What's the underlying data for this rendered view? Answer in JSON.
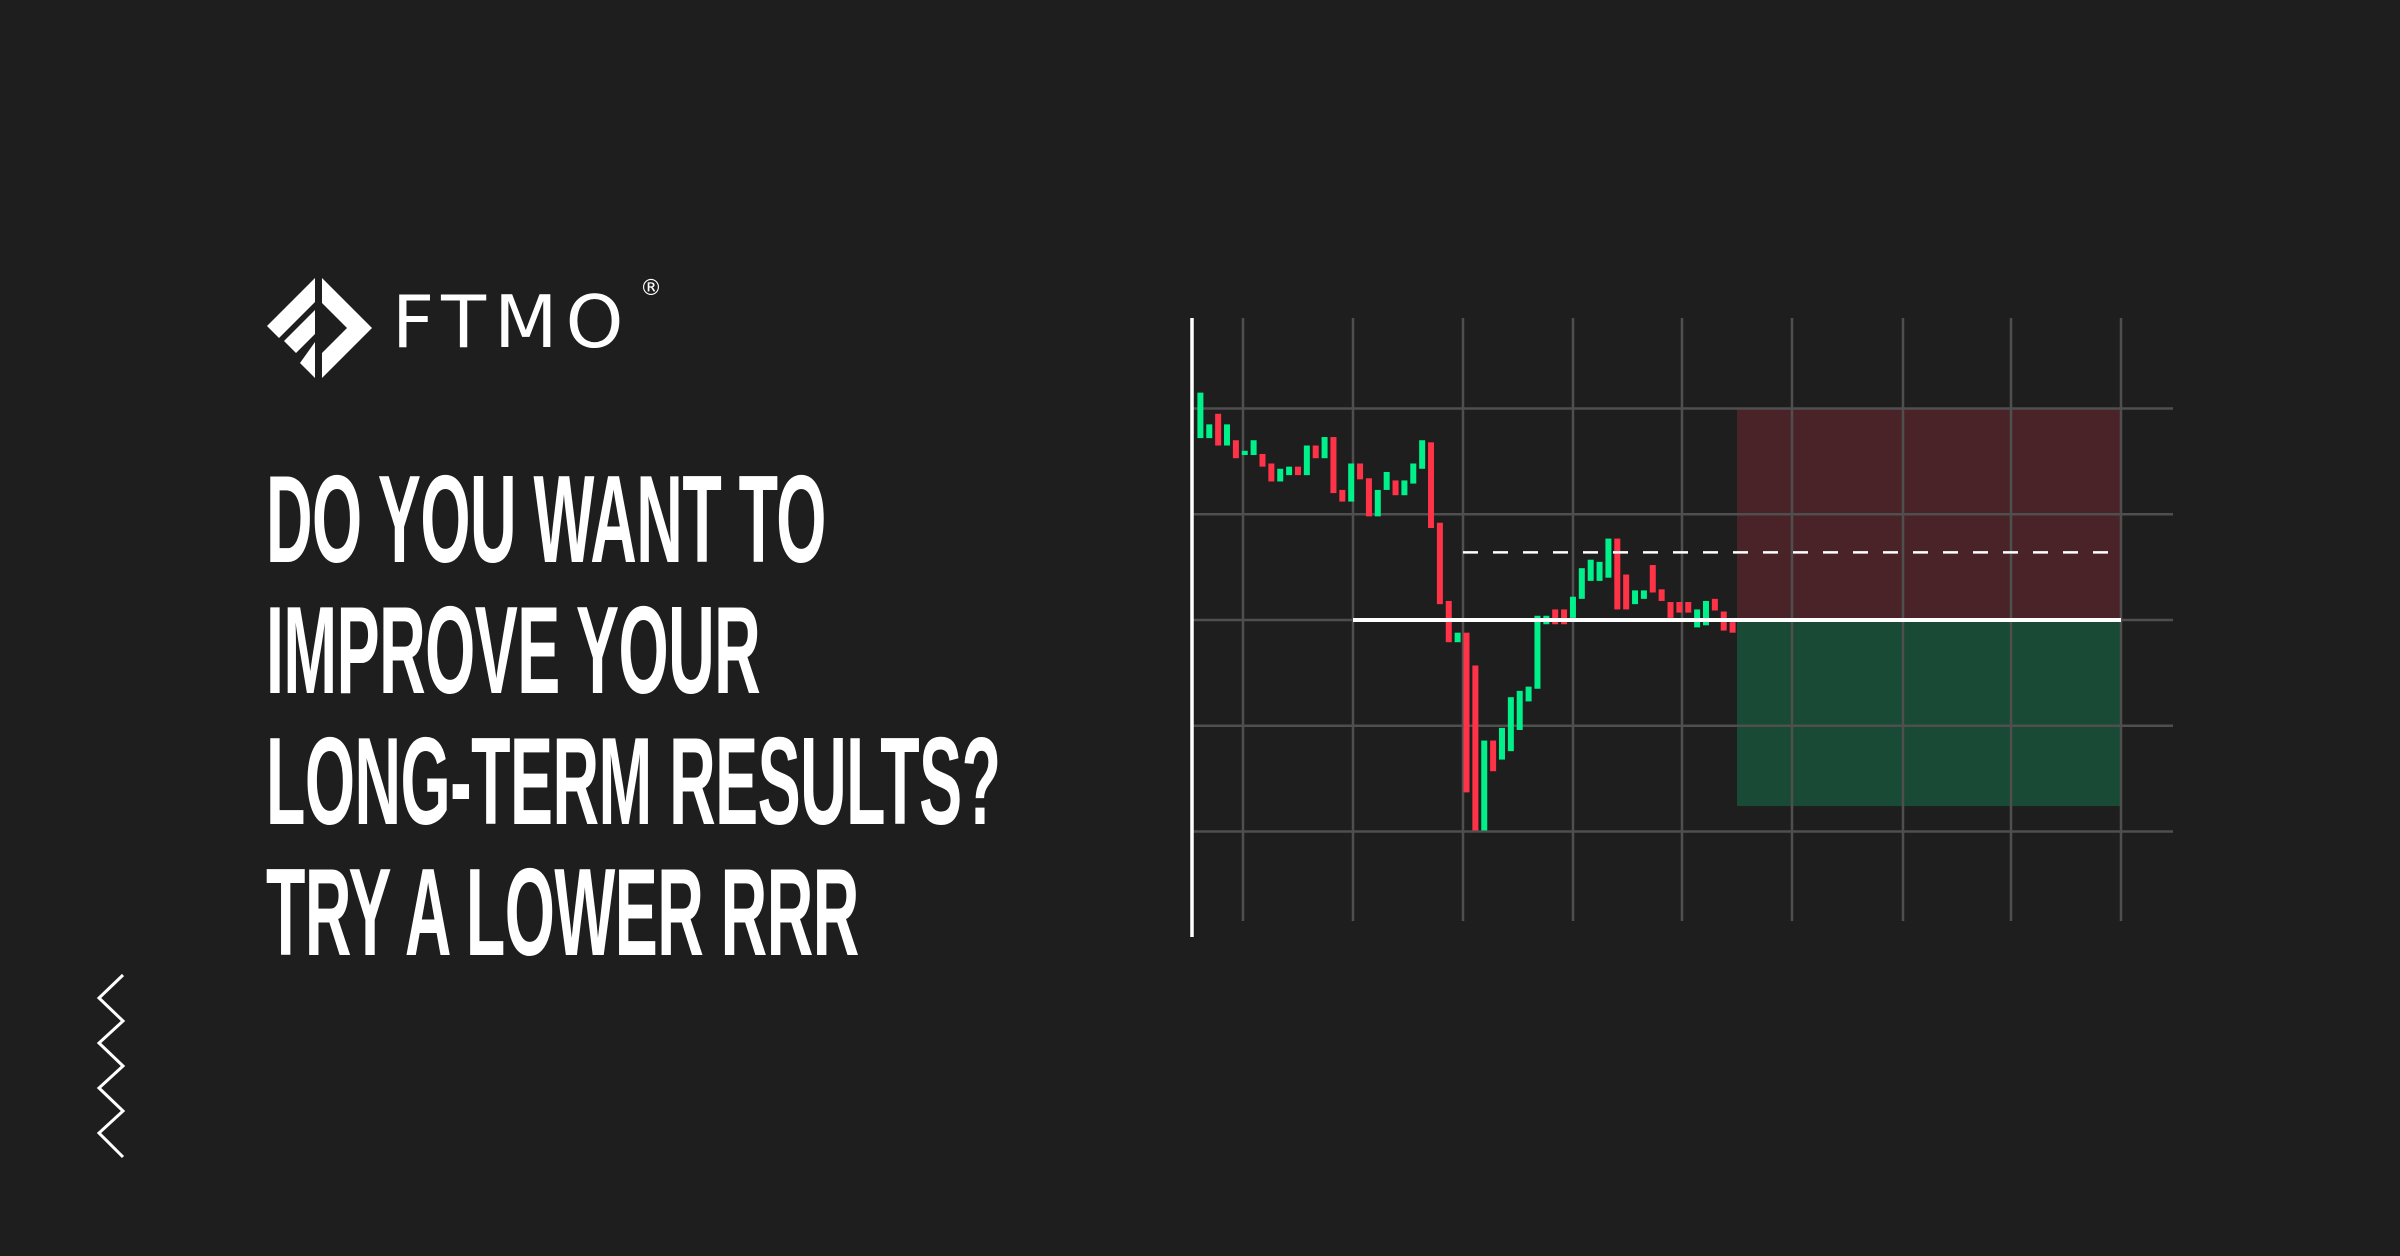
{
  "brand": {
    "name": "FTMO",
    "registered_mark": "®"
  },
  "headline": {
    "lines": [
      "DO YOU WANT TO",
      "IMPROVE YOUR",
      "LONG-TERM RESULTS?",
      "TRY A LOWER RRR"
    ]
  },
  "decor": {
    "icon": "zigzag-icon"
  },
  "colors": {
    "background": "#1e1e1e",
    "bull": "#00f08a",
    "bear": "#ff3347",
    "grid": "#4f4f4f",
    "stop_zone": "#4a2328",
    "target_zone": "#184a35",
    "entry_line": "#ffffff"
  },
  "chart_data": {
    "type": "candlestick",
    "title": "",
    "grid": true,
    "axis_labels": false,
    "levels": {
      "entry": 0,
      "dashed": 6.4,
      "stop_zone": [
        0,
        20
      ],
      "target_zone": [
        -17.6,
        0
      ]
    },
    "ylim": [
      -20,
      20
    ],
    "candles": [
      {
        "o": 17.2,
        "c": 21.5
      },
      {
        "o": 17.2,
        "c": 18.5
      },
      {
        "o": 19.5,
        "c": 16.5
      },
      {
        "o": 16.5,
        "c": 18.5
      },
      {
        "o": 17.0,
        "c": 15.3
      },
      {
        "o": 15.6,
        "c": 16.0
      },
      {
        "o": 15.6,
        "c": 17.0
      },
      {
        "o": 15.7,
        "c": 14.5
      },
      {
        "o": 14.8,
        "c": 13.1
      },
      {
        "o": 13.1,
        "c": 14.3
      },
      {
        "o": 13.7,
        "c": 14.5
      },
      {
        "o": 14.5,
        "c": 13.7
      },
      {
        "o": 13.7,
        "c": 16.5
      },
      {
        "o": 16.5,
        "c": 15.3
      },
      {
        "o": 15.3,
        "c": 17.3
      },
      {
        "o": 17.3,
        "c": 12.0
      },
      {
        "o": 12.3,
        "c": 11.2
      },
      {
        "o": 11.2,
        "c": 14.8
      },
      {
        "o": 14.8,
        "c": 13.3
      },
      {
        "o": 13.4,
        "c": 9.8
      },
      {
        "o": 9.8,
        "c": 12.3
      },
      {
        "o": 12.3,
        "c": 14.0
      },
      {
        "o": 13.2,
        "c": 11.8
      },
      {
        "o": 11.8,
        "c": 13.2
      },
      {
        "o": 12.9,
        "c": 14.8
      },
      {
        "o": 14.3,
        "c": 17.0
      },
      {
        "o": 16.8,
        "c": 8.7
      },
      {
        "o": 9.2,
        "c": 1.5
      },
      {
        "o": 1.8,
        "c": -2.1
      },
      {
        "o": -2.1,
        "c": -1.2
      },
      {
        "o": -1.2,
        "c": -16.3
      },
      {
        "o": -4.3,
        "c": -19.9
      },
      {
        "o": -19.9,
        "c": -11.4
      },
      {
        "o": -11.4,
        "c": -14.3
      },
      {
        "o": -13.2,
        "c": -10.2
      },
      {
        "o": -12.4,
        "c": -7.3
      },
      {
        "o": -10.4,
        "c": -6.7
      },
      {
        "o": -7.7,
        "c": -6.3
      },
      {
        "o": -6.5,
        "c": 0.4
      },
      {
        "o": -0.4,
        "c": 0.4
      },
      {
        "o": 1.0,
        "c": -0.4
      },
      {
        "o": 1.0,
        "c": -0.4
      },
      {
        "o": 0.2,
        "c": 2.2
      },
      {
        "o": 2.0,
        "c": 4.9
      },
      {
        "o": 3.7,
        "c": 5.7
      },
      {
        "o": 3.7,
        "c": 5.5
      },
      {
        "o": 4.0,
        "c": 7.7
      },
      {
        "o": 7.7,
        "c": 1.0
      },
      {
        "o": 4.3,
        "c": 1.0
      },
      {
        "o": 1.5,
        "c": 2.8
      },
      {
        "o": 2.0,
        "c": 2.8
      },
      {
        "o": 5.2,
        "c": 2.6
      },
      {
        "o": 2.9,
        "c": 1.8
      },
      {
        "o": 1.7,
        "c": 0.2
      },
      {
        "o": 1.7,
        "c": 0.7
      },
      {
        "o": 1.7,
        "c": 0.7
      },
      {
        "o": -0.7,
        "c": 1.0
      },
      {
        "o": -0.5,
        "c": 1.8
      },
      {
        "o": 2.0,
        "c": 0.9
      },
      {
        "o": 0.8,
        "c": -1.0
      },
      {
        "o": -0.2,
        "c": -1.2
      }
    ]
  }
}
